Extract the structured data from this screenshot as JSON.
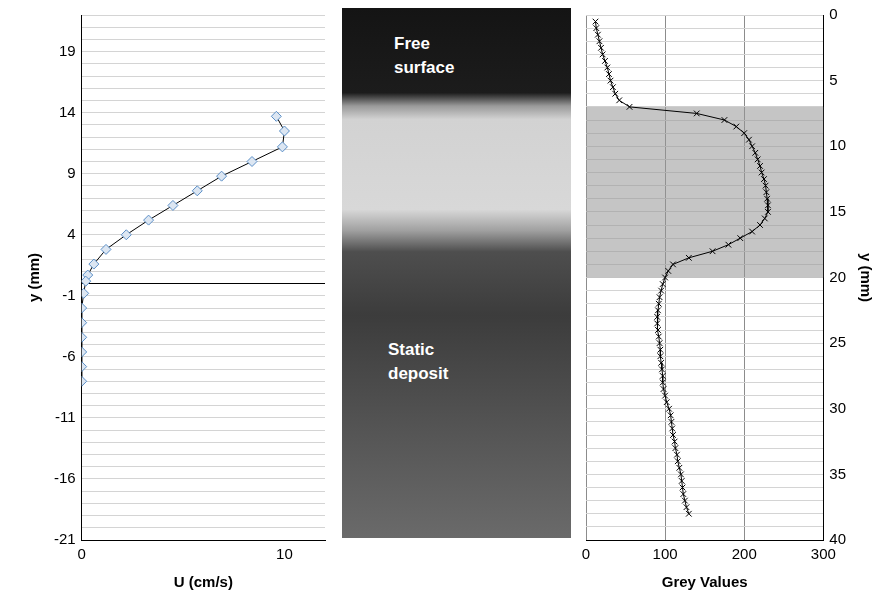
{
  "chart_data": [
    {
      "type": "scatter",
      "x_label": "U (cm/s)",
      "y_label": "y (mm)",
      "xlim": [
        0,
        12
      ],
      "xticks": [
        0,
        10
      ],
      "ylim": [
        -21,
        22
      ],
      "yticks": [
        -21,
        -16,
        -11,
        -6,
        -1,
        4,
        9,
        14,
        19
      ],
      "grid": "y",
      "series": [
        {
          "color": "#5b8fc7",
          "marker": "diamond",
          "line_style": "solid",
          "x": [
            9.6,
            10.0,
            9.9,
            8.4,
            6.9,
            5.7,
            4.5,
            3.3,
            2.2,
            1.2,
            0.6,
            0.3,
            0.2,
            0.1,
            0,
            0,
            0,
            0,
            0,
            0
          ],
          "values": [
            13.7,
            12.5,
            11.2,
            10.0,
            8.8,
            7.6,
            6.4,
            5.2,
            4.0,
            2.8,
            1.6,
            0.7,
            0.2,
            -0.8,
            -2.0,
            -3.2,
            -4.4,
            -5.6,
            -6.8,
            -8.0
          ]
        }
      ]
    },
    {
      "type": "scatter",
      "x_label": "Grey Values",
      "y_label": "y (mm)",
      "xlim": [
        0,
        300
      ],
      "xticks": [
        0,
        100,
        200,
        300
      ],
      "ylim": [
        40,
        0
      ],
      "yticks": [
        0,
        5,
        10,
        15,
        20,
        25,
        30,
        35,
        40
      ],
      "grid": true,
      "shaded_range": [
        7,
        20
      ],
      "series": [
        {
          "color": "#000000",
          "marker": "x",
          "line_style": "solid",
          "x": [
            12,
            13,
            15,
            17,
            19,
            21,
            24,
            27,
            29,
            31,
            34,
            37,
            42,
            55,
            140,
            175,
            190,
            200,
            206,
            210,
            214,
            217,
            220,
            222,
            225,
            227,
            228,
            229,
            230,
            230,
            226,
            220,
            210,
            195,
            180,
            160,
            130,
            110,
            104,
            100,
            97,
            95,
            93,
            92,
            91,
            90,
            90,
            91,
            92,
            93,
            94,
            94,
            95,
            96,
            97,
            97,
            98,
            100,
            102,
            105,
            107,
            108,
            109,
            110,
            112,
            113,
            115,
            116,
            118,
            120,
            121,
            122,
            123,
            125,
            127,
            130
          ],
          "values": [
            0.5,
            1,
            1.5,
            2,
            2.5,
            3,
            3.5,
            4,
            4.5,
            5,
            5.5,
            6,
            6.5,
            7,
            7.5,
            8,
            8.5,
            9,
            9.5,
            10,
            10.5,
            11,
            11.5,
            12,
            12.5,
            13,
            13.5,
            14,
            14.5,
            15,
            15.5,
            16,
            16.5,
            17,
            17.5,
            18,
            18.5,
            19,
            19.5,
            20,
            20.5,
            21,
            21.5,
            22,
            22.5,
            23,
            23.5,
            24,
            24.5,
            25,
            25.5,
            26,
            26.5,
            27,
            27.5,
            28,
            28.5,
            29,
            29.5,
            30,
            30.5,
            31,
            31.5,
            32,
            32.5,
            33,
            33.5,
            34,
            34.5,
            35,
            35.5,
            36,
            36.5,
            37,
            37.5,
            38
          ]
        }
      ]
    }
  ],
  "photo": {
    "labels": [
      "Free surface",
      "Static deposit"
    ]
  }
}
